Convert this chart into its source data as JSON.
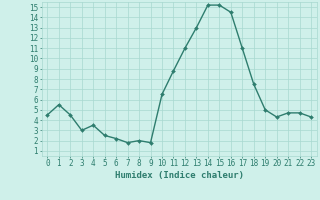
{
  "x": [
    0,
    1,
    2,
    3,
    4,
    5,
    6,
    7,
    8,
    9,
    10,
    11,
    12,
    13,
    14,
    15,
    16,
    17,
    18,
    19,
    20,
    21,
    22,
    23
  ],
  "y": [
    4.5,
    5.5,
    4.5,
    3.0,
    3.5,
    2.5,
    2.2,
    1.8,
    2.0,
    1.8,
    6.5,
    8.8,
    11.0,
    13.0,
    15.2,
    15.2,
    14.5,
    11.0,
    7.5,
    5.0,
    4.3,
    4.7,
    4.7,
    4.3
  ],
  "line_color": "#2e7d6e",
  "marker": "D",
  "marker_size": 2,
  "bg_color": "#cff0ea",
  "grid_color": "#a8d8d0",
  "xlabel": "Humidex (Indice chaleur)",
  "xlim": [
    -0.5,
    23.5
  ],
  "ylim": [
    0.5,
    15.5
  ],
  "yticks": [
    1,
    2,
    3,
    4,
    5,
    6,
    7,
    8,
    9,
    10,
    11,
    12,
    13,
    14,
    15
  ],
  "xticks": [
    0,
    1,
    2,
    3,
    4,
    5,
    6,
    7,
    8,
    9,
    10,
    11,
    12,
    13,
    14,
    15,
    16,
    17,
    18,
    19,
    20,
    21,
    22,
    23
  ],
  "tick_color": "#2e7d6e",
  "label_color": "#2e7d6e",
  "xlabel_fontsize": 6.5,
  "tick_fontsize": 5.5,
  "linewidth": 1.0
}
